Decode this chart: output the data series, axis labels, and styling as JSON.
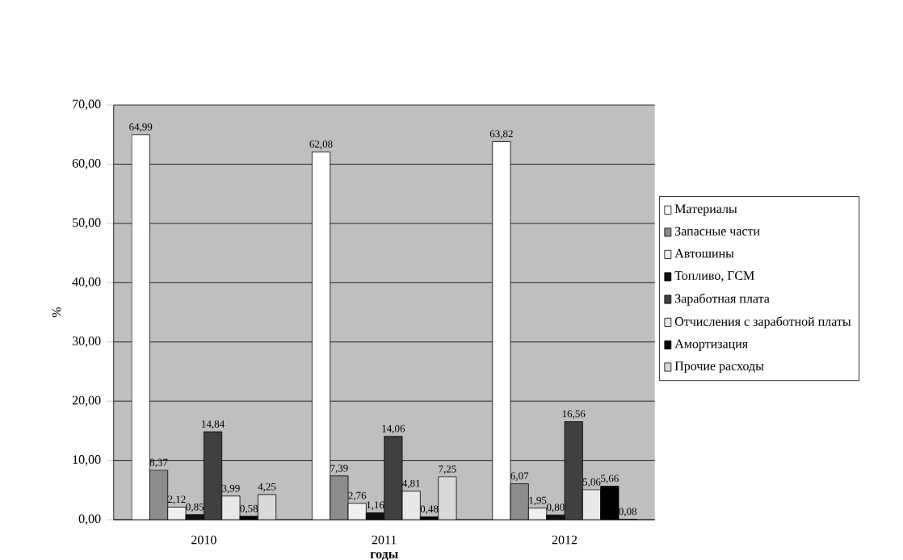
{
  "chart_data": {
    "type": "bar",
    "xlabel": "**годы**",
    "ylabel": "%",
    "categories": [
      "2010",
      "2011",
      "2012"
    ],
    "series": [
      {
        "name": "Материалы",
        "color": "#ffffff",
        "values": [
          64.99,
          62.08,
          63.82
        ],
        "value_labels": [
          "64,99",
          "62,08",
          "63,82"
        ]
      },
      {
        "name": "Запасные части",
        "color": "#8c8c8c",
        "values": [
          8.37,
          7.39,
          6.07
        ],
        "value_labels": [
          "8,37",
          "7,39",
          "6,07"
        ]
      },
      {
        "name": "Автошины",
        "color": "#f0f0f0",
        "values": [
          2.12,
          2.76,
          1.95
        ],
        "value_labels": [
          "2,12",
          "2,76",
          "1,95"
        ]
      },
      {
        "name": "Топливо, ГСМ",
        "color": "#101010",
        "values": [
          0.85,
          1.16,
          0.8
        ],
        "value_labels": [
          "0,85",
          "1,16",
          "0,80"
        ]
      },
      {
        "name": "Заработная плата",
        "color": "#404040",
        "values": [
          14.84,
          14.06,
          16.56
        ],
        "value_labels": [
          "14,84",
          "14,06",
          "16,56"
        ]
      },
      {
        "name": "Отчисления с заработной платы",
        "color": "#e8e8e8",
        "values": [
          3.99,
          4.81,
          5.06
        ],
        "value_labels": [
          "3,99",
          "4,81",
          "5,06"
        ]
      },
      {
        "name": "Амортизация",
        "color": "#000000",
        "values": [
          0.58,
          0.48,
          5.66
        ],
        "value_labels": [
          "0,58",
          "0,48",
          "5,66"
        ]
      },
      {
        "name": "Прочие расходы",
        "color": "#dadada",
        "values": [
          4.25,
          7.25,
          0.08
        ],
        "value_labels": [
          "4,25",
          "7,25",
          "0,08"
        ]
      }
    ],
    "ylim": [
      0,
      70
    ],
    "yticks": [
      {
        "value": 0,
        "label": "0,00"
      },
      {
        "value": 10,
        "label": "10,00"
      },
      {
        "value": 20,
        "label": "20,00"
      },
      {
        "value": 30,
        "label": "30,00"
      },
      {
        "value": 40,
        "label": "40,00"
      },
      {
        "value": 50,
        "label": "50,00"
      },
      {
        "value": 60,
        "label": "60,00"
      },
      {
        "value": 70,
        "label": "70,00"
      }
    ],
    "grid": "y",
    "legend": "right"
  }
}
